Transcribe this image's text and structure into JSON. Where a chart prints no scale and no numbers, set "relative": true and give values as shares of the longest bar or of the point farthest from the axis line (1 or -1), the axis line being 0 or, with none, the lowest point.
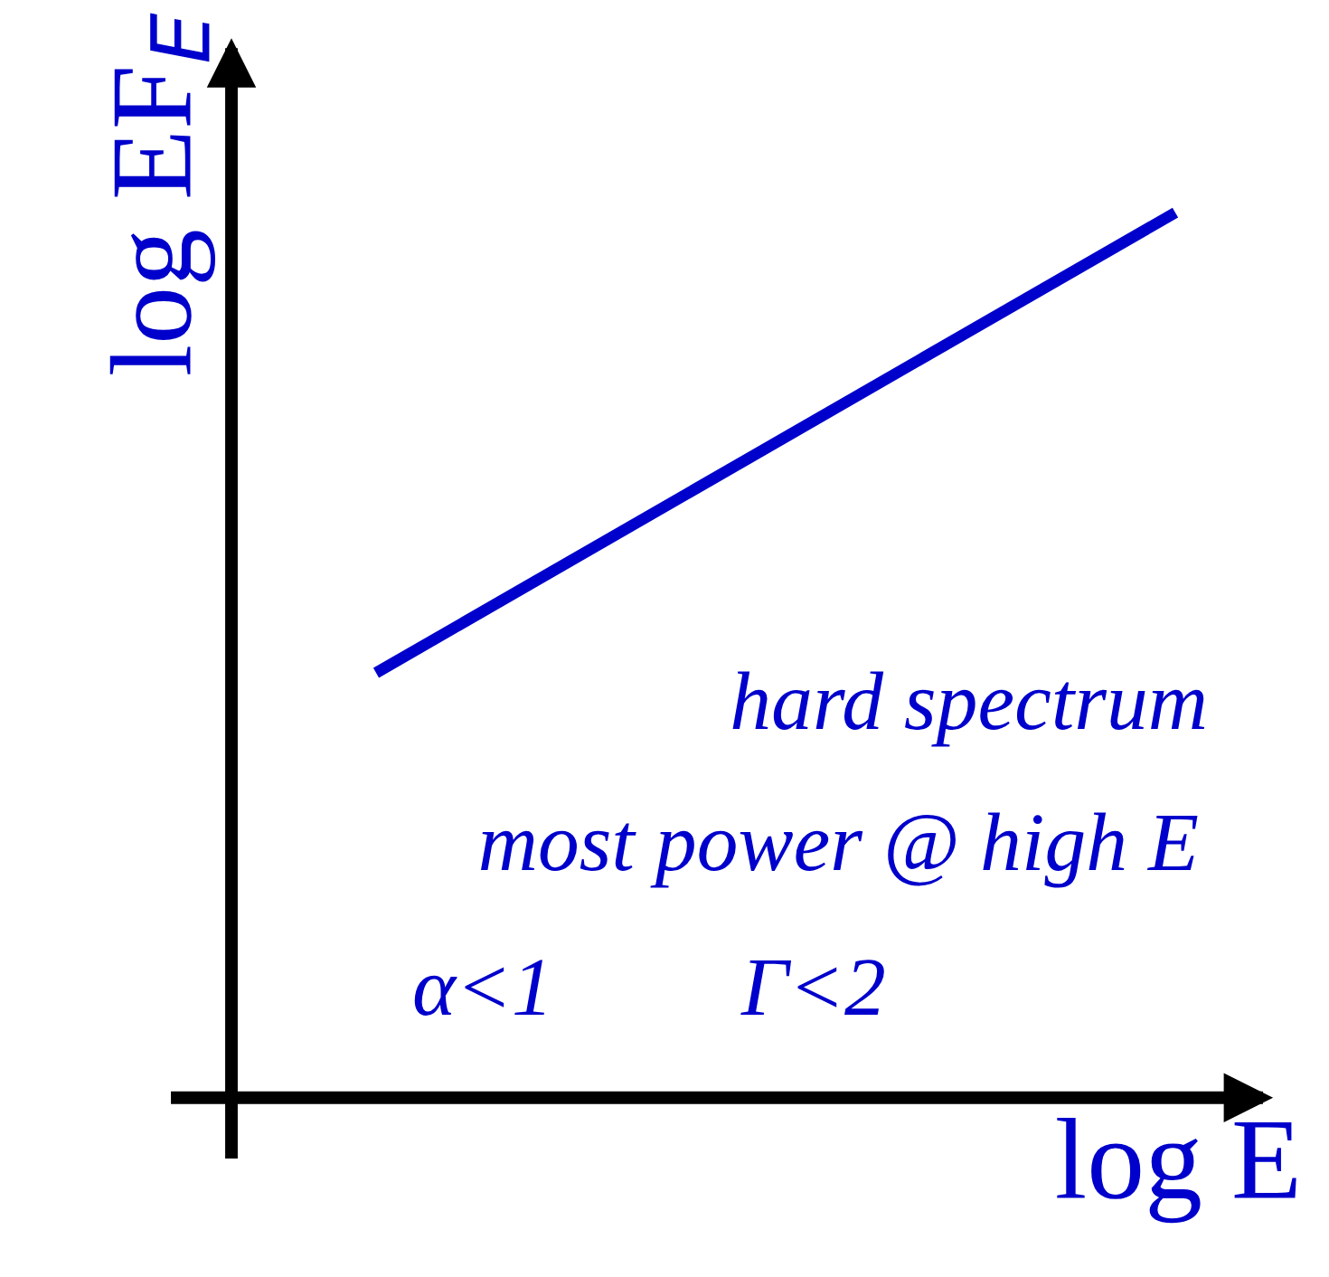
{
  "chart_data": {
    "type": "line",
    "relative": true,
    "categories": [
      null,
      null
    ],
    "xlabel": "log E",
    "ylabel": "log EF$_{E}$",
    "series": [
      {
        "color": "#0000cc",
        "values": [
          0.48,
          1
        ]
      }
    ],
    "annotations": [
      "hard spectrum",
      "most power @ high E",
      "α<1",
      "Γ<2"
    ],
    "marker": "none",
    "line_style": "solid"
  }
}
